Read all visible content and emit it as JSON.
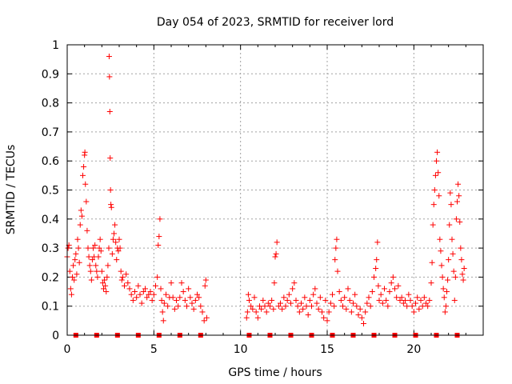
{
  "chart_data": {
    "type": "scatter",
    "title": "Day 054 of 2023, SRMTID for receiver lord",
    "xlabel": "GPS time / hours",
    "ylabel": "SRMTID / TECUs",
    "xlim": [
      0,
      24
    ],
    "ylim": [
      0,
      1
    ],
    "xticks": [
      0,
      5,
      10,
      15,
      20
    ],
    "xtick_labels": [
      "0",
      "5",
      "10",
      "15",
      "20"
    ],
    "yticks": [
      0,
      0.1,
      0.2,
      0.3,
      0.4,
      0.5,
      0.6,
      0.7,
      0.8,
      0.9,
      1
    ],
    "ytick_labels": [
      "0",
      "0.1",
      "0.2",
      "0.3",
      "0.4",
      "0.5",
      "0.6",
      "0.7",
      "0.8",
      "0.9",
      "1"
    ],
    "grid": true,
    "marker": "+",
    "color": "#ff0000",
    "series": [
      {
        "name": "SRMTID",
        "points": [
          [
            0.0,
            0.27
          ],
          [
            0.05,
            0.3
          ],
          [
            0.1,
            0.31
          ],
          [
            0.15,
            0.22
          ],
          [
            0.2,
            0.16
          ],
          [
            0.25,
            0.14
          ],
          [
            0.3,
            0.2
          ],
          [
            0.35,
            0.24
          ],
          [
            0.4,
            0.19
          ],
          [
            0.45,
            0.26
          ],
          [
            0.5,
            0.28
          ],
          [
            0.55,
            0.21
          ],
          [
            0.6,
            0.33
          ],
          [
            0.65,
            0.3
          ],
          [
            0.7,
            0.25
          ],
          [
            0.75,
            0.38
          ],
          [
            0.8,
            0.43
          ],
          [
            0.85,
            0.41
          ],
          [
            0.9,
            0.55
          ],
          [
            0.95,
            0.58
          ],
          [
            1.0,
            0.62
          ],
          [
            1.02,
            0.63
          ],
          [
            1.05,
            0.52
          ],
          [
            1.1,
            0.46
          ],
          [
            1.15,
            0.36
          ],
          [
            1.2,
            0.3
          ],
          [
            1.25,
            0.27
          ],
          [
            1.3,
            0.24
          ],
          [
            1.35,
            0.22
          ],
          [
            1.4,
            0.19
          ],
          [
            1.45,
            0.26
          ],
          [
            1.5,
            0.3
          ],
          [
            1.55,
            0.27
          ],
          [
            1.6,
            0.31
          ],
          [
            1.65,
            0.24
          ],
          [
            1.7,
            0.22
          ],
          [
            1.75,
            0.2
          ],
          [
            1.8,
            0.27
          ],
          [
            1.85,
            0.3
          ],
          [
            1.9,
            0.33
          ],
          [
            1.95,
            0.29
          ],
          [
            2.0,
            0.22
          ],
          [
            2.05,
            0.18
          ],
          [
            2.1,
            0.16
          ],
          [
            2.15,
            0.19
          ],
          [
            2.2,
            0.17
          ],
          [
            2.25,
            0.15
          ],
          [
            2.3,
            0.2
          ],
          [
            2.35,
            0.24
          ],
          [
            2.4,
            0.3
          ],
          [
            2.42,
            0.96
          ],
          [
            2.44,
            0.89
          ],
          [
            2.46,
            0.77
          ],
          [
            2.48,
            0.61
          ],
          [
            2.5,
            0.5
          ],
          [
            2.52,
            0.45
          ],
          [
            2.55,
            0.44
          ],
          [
            2.6,
            0.28
          ],
          [
            2.65,
            0.33
          ],
          [
            2.7,
            0.35
          ],
          [
            2.75,
            0.38
          ],
          [
            2.8,
            0.32
          ],
          [
            2.85,
            0.26
          ],
          [
            2.9,
            0.3
          ],
          [
            2.95,
            0.29
          ],
          [
            3.0,
            0.33
          ],
          [
            3.05,
            0.3
          ],
          [
            3.1,
            0.22
          ],
          [
            3.15,
            0.19
          ],
          [
            3.2,
            0.2
          ],
          [
            3.3,
            0.17
          ],
          [
            3.4,
            0.21
          ],
          [
            3.5,
            0.18
          ],
          [
            3.6,
            0.16
          ],
          [
            3.7,
            0.14
          ],
          [
            3.8,
            0.12
          ],
          [
            3.9,
            0.15
          ],
          [
            4.0,
            0.13
          ],
          [
            4.1,
            0.17
          ],
          [
            4.2,
            0.14
          ],
          [
            4.3,
            0.11
          ],
          [
            4.4,
            0.15
          ],
          [
            4.5,
            0.16
          ],
          [
            4.6,
            0.13
          ],
          [
            4.7,
            0.14
          ],
          [
            4.8,
            0.15
          ],
          [
            4.9,
            0.12
          ],
          [
            5.0,
            0.14
          ],
          [
            5.1,
            0.17
          ],
          [
            5.2,
            0.2
          ],
          [
            5.25,
            0.31
          ],
          [
            5.3,
            0.34
          ],
          [
            5.35,
            0.4
          ],
          [
            5.4,
            0.16
          ],
          [
            5.45,
            0.12
          ],
          [
            5.5,
            0.08
          ],
          [
            5.55,
            0.05
          ],
          [
            5.6,
            0.11
          ],
          [
            5.7,
            0.14
          ],
          [
            5.8,
            0.1
          ],
          [
            5.9,
            0.13
          ],
          [
            6.0,
            0.18
          ],
          [
            6.1,
            0.13
          ],
          [
            6.2,
            0.09
          ],
          [
            6.3,
            0.12
          ],
          [
            6.4,
            0.1
          ],
          [
            6.5,
            0.13
          ],
          [
            6.6,
            0.18
          ],
          [
            6.7,
            0.15
          ],
          [
            6.8,
            0.12
          ],
          [
            6.9,
            0.1
          ],
          [
            7.0,
            0.16
          ],
          [
            7.1,
            0.13
          ],
          [
            7.2,
            0.11
          ],
          [
            7.3,
            0.09
          ],
          [
            7.4,
            0.12
          ],
          [
            7.5,
            0.14
          ],
          [
            7.6,
            0.13
          ],
          [
            7.7,
            0.1
          ],
          [
            7.8,
            0.08
          ],
          [
            7.9,
            0.05
          ],
          [
            7.95,
            0.17
          ],
          [
            8.0,
            0.19
          ],
          [
            8.05,
            0.06
          ],
          [
            10.35,
            0.06
          ],
          [
            10.4,
            0.08
          ],
          [
            10.45,
            0.14
          ],
          [
            10.5,
            0.12
          ],
          [
            10.6,
            0.1
          ],
          [
            10.7,
            0.09
          ],
          [
            10.8,
            0.13
          ],
          [
            10.9,
            0.08
          ],
          [
            11.0,
            0.06
          ],
          [
            11.1,
            0.1
          ],
          [
            11.2,
            0.09
          ],
          [
            11.3,
            0.12
          ],
          [
            11.4,
            0.1
          ],
          [
            11.5,
            0.08
          ],
          [
            11.6,
            0.11
          ],
          [
            11.7,
            0.1
          ],
          [
            11.8,
            0.12
          ],
          [
            11.9,
            0.09
          ],
          [
            11.95,
            0.18
          ],
          [
            12.0,
            0.27
          ],
          [
            12.05,
            0.28
          ],
          [
            12.1,
            0.32
          ],
          [
            12.2,
            0.1
          ],
          [
            12.3,
            0.11
          ],
          [
            12.4,
            0.09
          ],
          [
            12.5,
            0.13
          ],
          [
            12.6,
            0.1
          ],
          [
            12.7,
            0.12
          ],
          [
            12.8,
            0.14
          ],
          [
            12.9,
            0.11
          ],
          [
            13.0,
            0.16
          ],
          [
            13.1,
            0.18
          ],
          [
            13.2,
            0.12
          ],
          [
            13.3,
            0.1
          ],
          [
            13.4,
            0.08
          ],
          [
            13.5,
            0.11
          ],
          [
            13.6,
            0.09
          ],
          [
            13.7,
            0.13
          ],
          [
            13.8,
            0.1
          ],
          [
            13.9,
            0.07
          ],
          [
            14.0,
            0.12
          ],
          [
            14.1,
            0.1
          ],
          [
            14.2,
            0.14
          ],
          [
            14.3,
            0.16
          ],
          [
            14.4,
            0.11
          ],
          [
            14.5,
            0.09
          ],
          [
            14.6,
            0.13
          ],
          [
            14.7,
            0.08
          ],
          [
            14.8,
            0.06
          ],
          [
            14.9,
            0.12
          ],
          [
            15.0,
            0.05
          ],
          [
            15.1,
            0.08
          ],
          [
            15.2,
            0.11
          ],
          [
            15.3,
            0.14
          ],
          [
            15.4,
            0.1
          ],
          [
            15.45,
            0.26
          ],
          [
            15.5,
            0.3
          ],
          [
            15.55,
            0.33
          ],
          [
            15.6,
            0.22
          ],
          [
            15.7,
            0.15
          ],
          [
            15.8,
            0.12
          ],
          [
            15.9,
            0.1
          ],
          [
            16.0,
            0.13
          ],
          [
            16.1,
            0.09
          ],
          [
            16.2,
            0.16
          ],
          [
            16.3,
            0.12
          ],
          [
            16.4,
            0.08
          ],
          [
            16.5,
            0.11
          ],
          [
            16.6,
            0.14
          ],
          [
            16.7,
            0.1
          ],
          [
            16.8,
            0.07
          ],
          [
            16.9,
            0.09
          ],
          [
            17.0,
            0.06
          ],
          [
            17.1,
            0.04
          ],
          [
            17.2,
            0.08
          ],
          [
            17.3,
            0.11
          ],
          [
            17.4,
            0.13
          ],
          [
            17.5,
            0.1
          ],
          [
            17.6,
            0.15
          ],
          [
            17.7,
            0.2
          ],
          [
            17.8,
            0.23
          ],
          [
            17.85,
            0.26
          ],
          [
            17.9,
            0.32
          ],
          [
            17.95,
            0.17
          ],
          [
            18.0,
            0.12
          ],
          [
            18.1,
            0.14
          ],
          [
            18.2,
            0.11
          ],
          [
            18.3,
            0.16
          ],
          [
            18.4,
            0.12
          ],
          [
            18.5,
            0.1
          ],
          [
            18.6,
            0.15
          ],
          [
            18.7,
            0.18
          ],
          [
            18.8,
            0.2
          ],
          [
            18.9,
            0.16
          ],
          [
            19.0,
            0.13
          ],
          [
            19.1,
            0.17
          ],
          [
            19.2,
            0.12
          ],
          [
            19.3,
            0.13
          ],
          [
            19.4,
            0.11
          ],
          [
            19.5,
            0.12
          ],
          [
            19.6,
            0.1
          ],
          [
            19.7,
            0.14
          ],
          [
            19.8,
            0.12
          ],
          [
            19.9,
            0.1
          ],
          [
            20.0,
            0.08
          ],
          [
            20.1,
            0.11
          ],
          [
            20.2,
            0.13
          ],
          [
            20.3,
            0.09
          ],
          [
            20.4,
            0.12
          ],
          [
            20.5,
            0.1
          ],
          [
            20.6,
            0.13
          ],
          [
            20.7,
            0.11
          ],
          [
            20.8,
            0.1
          ],
          [
            20.9,
            0.12
          ],
          [
            21.0,
            0.18
          ],
          [
            21.05,
            0.25
          ],
          [
            21.1,
            0.38
          ],
          [
            21.15,
            0.45
          ],
          [
            21.2,
            0.5
          ],
          [
            21.25,
            0.55
          ],
          [
            21.3,
            0.6
          ],
          [
            21.35,
            0.63
          ],
          [
            21.4,
            0.56
          ],
          [
            21.45,
            0.48
          ],
          [
            21.5,
            0.33
          ],
          [
            21.55,
            0.29
          ],
          [
            21.6,
            0.24
          ],
          [
            21.65,
            0.2
          ],
          [
            21.7,
            0.16
          ],
          [
            21.75,
            0.13
          ],
          [
            21.8,
            0.08
          ],
          [
            21.85,
            0.1
          ],
          [
            21.9,
            0.15
          ],
          [
            21.95,
            0.19
          ],
          [
            22.0,
            0.26
          ],
          [
            22.05,
            0.38
          ],
          [
            22.1,
            0.49
          ],
          [
            22.15,
            0.45
          ],
          [
            22.2,
            0.33
          ],
          [
            22.25,
            0.28
          ],
          [
            22.3,
            0.22
          ],
          [
            22.35,
            0.12
          ],
          [
            22.4,
            0.2
          ],
          [
            22.45,
            0.4
          ],
          [
            22.5,
            0.46
          ],
          [
            22.55,
            0.52
          ],
          [
            22.6,
            0.48
          ],
          [
            22.65,
            0.39
          ],
          [
            22.7,
            0.3
          ],
          [
            22.75,
            0.26
          ],
          [
            22.8,
            0.21
          ],
          [
            22.85,
            0.19
          ],
          [
            22.9,
            0.23
          ]
        ]
      }
    ],
    "bottom_markers_x": [
      0.5,
      1.7,
      2.9,
      4.1,
      5.3,
      6.5,
      7.7,
      10.5,
      11.7,
      12.9,
      14.1,
      15.3,
      16.5,
      17.7,
      18.9,
      20.1,
      21.3,
      22.5
    ]
  }
}
